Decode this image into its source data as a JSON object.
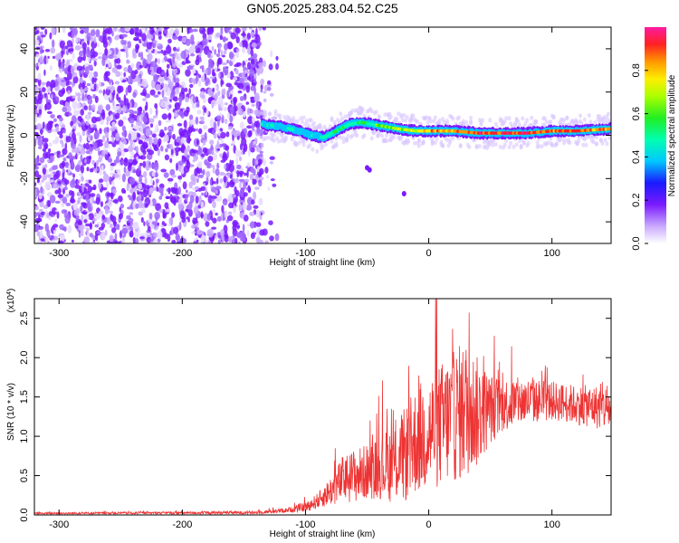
{
  "title": "GN05.2025.283.04.52.C25",
  "chart_data": [
    {
      "type": "heatmap",
      "ylabel": "Frequency (Hz)",
      "xlabel": "Height of straight line (km)",
      "xlim": [
        -320,
        148
      ],
      "ylim": [
        -50,
        50
      ],
      "x_ticks": [
        -300,
        -200,
        -100,
        0,
        100
      ],
      "x_tick_labels": [
        "-300",
        "-200",
        "-100",
        "0",
        "100"
      ],
      "y_ticks": [
        -40,
        -20,
        0,
        20,
        40
      ],
      "y_tick_labels": [
        "-40",
        "-20",
        "0",
        "20",
        "40"
      ],
      "colorbar": {
        "label": "Normalized spectral amplitude",
        "range": [
          0,
          1
        ],
        "ticks": [
          0.0,
          0.2,
          0.4,
          0.6,
          0.8
        ],
        "tick_labels": [
          "0.0",
          "0.2",
          "0.4",
          "0.6",
          "0.8"
        ]
      },
      "noise_region_x": [
        -320,
        -135
      ],
      "ridge": {
        "x": [
          -135,
          -120,
          -105,
          -95,
          -85,
          -75,
          -65,
          -55,
          -45,
          -35,
          -25,
          -10,
          0,
          20,
          40,
          60,
          80,
          100,
          120,
          148
        ],
        "y": [
          5,
          4,
          2,
          0,
          -1,
          2,
          5,
          6,
          5,
          4,
          3,
          2,
          2,
          2,
          1,
          1,
          1,
          2,
          2,
          3
        ],
        "amplitude": [
          0.45,
          0.5,
          0.5,
          0.45,
          0.5,
          0.55,
          0.55,
          0.6,
          0.6,
          0.65,
          0.7,
          0.8,
          0.85,
          0.9,
          0.95,
          0.95,
          0.95,
          0.9,
          0.9,
          0.85
        ]
      }
    },
    {
      "type": "line",
      "ylabel": "SNR (10 * v/v)",
      "xlabel": "Height of straight line (km)",
      "y_multiplier_label": "(x10",
      "y_multiplier_exp": "4",
      "y_multiplier_close": ")",
      "xlim": [
        -320,
        148
      ],
      "ylim": [
        0,
        2.75
      ],
      "x_ticks": [
        -300,
        -200,
        -100,
        0,
        100
      ],
      "x_tick_labels": [
        "-300",
        "-200",
        "-100",
        "0",
        "100"
      ],
      "y_ticks": [
        0.0,
        0.5,
        1.0,
        1.5,
        2.0,
        2.5
      ],
      "y_tick_labels": [
        "0.0",
        "0.5",
        "1.0",
        "1.5",
        "2.0",
        "2.5"
      ],
      "line_color": "#ee3333",
      "envelope": {
        "x": [
          -320,
          -140,
          -115,
          -100,
          -90,
          -80,
          -70,
          -60,
          -50,
          -40,
          -30,
          -20,
          -10,
          0,
          10,
          20,
          30,
          40,
          50,
          60,
          80,
          100,
          120,
          148
        ],
        "mean": [
          0.02,
          0.03,
          0.06,
          0.1,
          0.18,
          0.3,
          0.45,
          0.5,
          0.55,
          0.6,
          0.65,
          0.75,
          0.95,
          1.05,
          1.15,
          1.25,
          1.35,
          1.3,
          1.35,
          1.4,
          1.45,
          1.45,
          1.4,
          1.35
        ],
        "spread": [
          0.01,
          0.02,
          0.03,
          0.06,
          0.1,
          0.18,
          0.3,
          0.35,
          0.35,
          0.4,
          0.5,
          0.6,
          0.7,
          0.75,
          0.8,
          0.85,
          0.9,
          0.7,
          0.45,
          0.35,
          0.3,
          0.25,
          0.25,
          0.3
        ]
      }
    }
  ]
}
